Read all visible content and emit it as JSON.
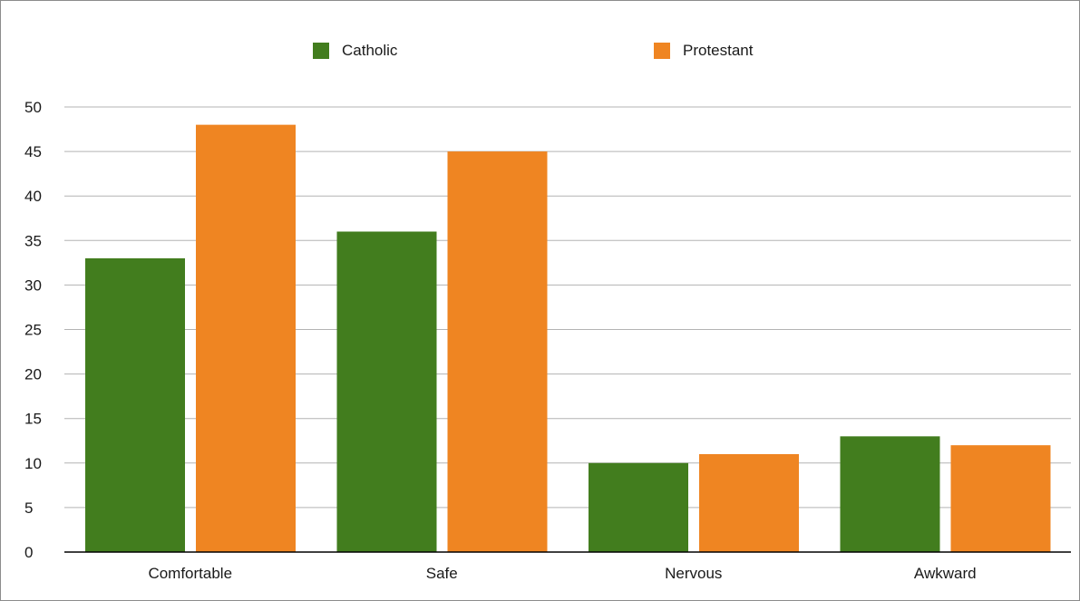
{
  "chart_data": {
    "type": "bar",
    "title": "",
    "xlabel": "",
    "ylabel": "",
    "categories": [
      "Comfortable",
      "Safe",
      "Nervous",
      "Awkward"
    ],
    "series": [
      {
        "name": "Catholic",
        "color": "#427d1e",
        "values": [
          33,
          36,
          10,
          13
        ]
      },
      {
        "name": "Protestant",
        "color": "#ef8522",
        "values": [
          48,
          45,
          11,
          12
        ]
      }
    ],
    "ylim": [
      0,
      50
    ],
    "yticks": [
      "0",
      "5",
      "10",
      "15",
      "20",
      "25",
      "30",
      "35",
      "40",
      "45",
      "50"
    ],
    "grid": true,
    "legend_position": "top"
  }
}
